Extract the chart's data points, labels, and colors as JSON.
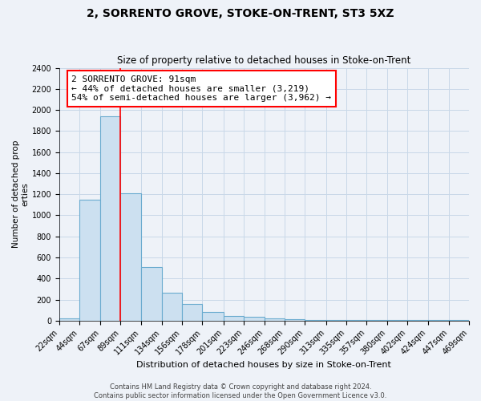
{
  "title": "2, SORRENTO GROVE, STOKE-ON-TRENT, ST3 5XZ",
  "subtitle": "Size of property relative to detached houses in Stoke-on-Trent",
  "xlabel": "Distribution of detached houses by size in Stoke-on-Trent",
  "ylabel": "Number of detached properties",
  "bar_values": [
    25,
    1150,
    1940,
    1210,
    510,
    265,
    155,
    80,
    43,
    35,
    20,
    15,
    5,
    5,
    3,
    3,
    3,
    3,
    3,
    3
  ],
  "bin_labels": [
    "22sqm",
    "44sqm",
    "67sqm",
    "89sqm",
    "111sqm",
    "134sqm",
    "156sqm",
    "178sqm",
    "201sqm",
    "223sqm",
    "246sqm",
    "268sqm",
    "290sqm",
    "313sqm",
    "335sqm",
    "357sqm",
    "380sqm",
    "402sqm",
    "424sqm",
    "447sqm",
    "469sqm"
  ],
  "bar_color": "#cce0f0",
  "bar_edge_color": "#6aabcf",
  "red_line_x": 89,
  "bin_edges": [
    22,
    44,
    67,
    89,
    111,
    134,
    156,
    178,
    201,
    223,
    246,
    268,
    290,
    313,
    335,
    357,
    380,
    402,
    424,
    447,
    469
  ],
  "annotation_text": "2 SORRENTO GROVE: 91sqm\n← 44% of detached houses are smaller (3,219)\n54% of semi-detached houses are larger (3,962) →",
  "ylim": [
    0,
    2400
  ],
  "yticks": [
    0,
    200,
    400,
    600,
    800,
    1000,
    1200,
    1400,
    1600,
    1800,
    2000,
    2200,
    2400
  ],
  "grid_color": "#c8d8e8",
  "footer": "Contains HM Land Registry data © Crown copyright and database right 2024.\nContains public sector information licensed under the Open Government Licence v3.0.",
  "bg_color": "#eef2f8"
}
